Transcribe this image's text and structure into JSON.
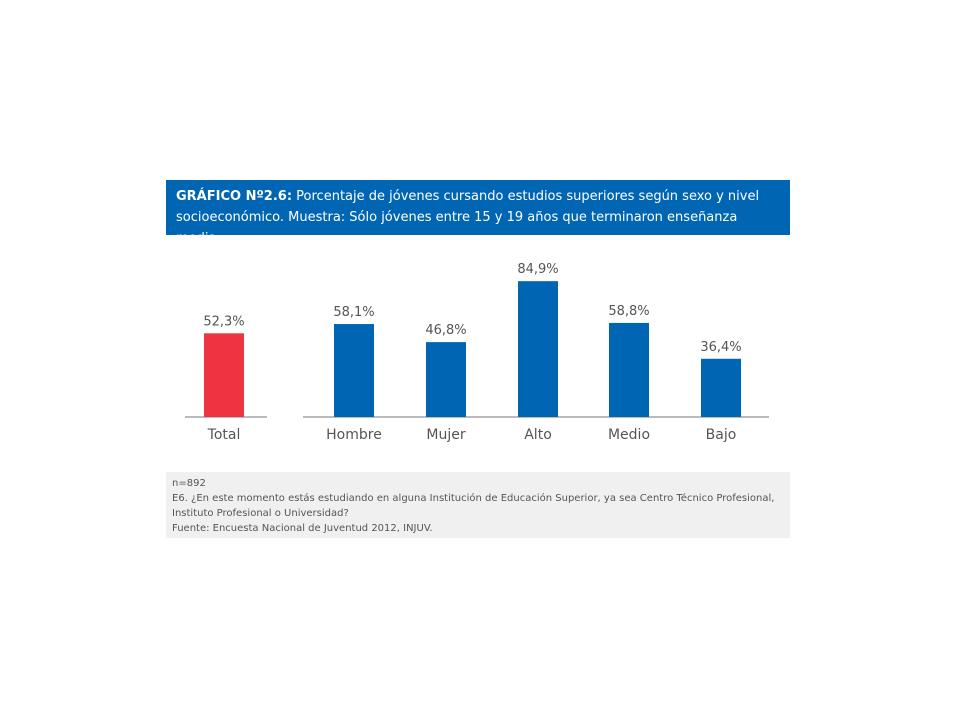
{
  "header": {
    "label": "GRÁFICO Nº2.6:",
    "title_line1": "Porcentaje de jóvenes cursando estudios superiores según sexo y nivel",
    "title_line2": "socioeconómico. Muestra: Sólo jóvenes entre 15 y 19 años que terminaron enseñanza media."
  },
  "chart_data": {
    "type": "bar",
    "categories": [
      "Total",
      "Hombre",
      "Mujer",
      "Alto",
      "Medio",
      "Bajo"
    ],
    "values": [
      52.3,
      58.1,
      46.8,
      84.9,
      58.8,
      36.4
    ],
    "value_labels": [
      "52,3%",
      "58,1%",
      "46,8%",
      "84,9%",
      "58,8%",
      "36,4%"
    ],
    "ylim": [
      0,
      100
    ],
    "grid": false,
    "colors": {
      "Total": "#ef3340",
      "default": "#0066b3"
    }
  },
  "footer": {
    "n": "n=892",
    "question_line1": "E6. ¿En este momento estás estudiando en alguna Institución de Educación Superior, ya sea Centro Técnico Profesional,",
    "question_line2": "Instituto Profesional o Universidad?",
    "source": "Fuente: Encuesta Nacional de Juventud 2012, INJUV."
  }
}
